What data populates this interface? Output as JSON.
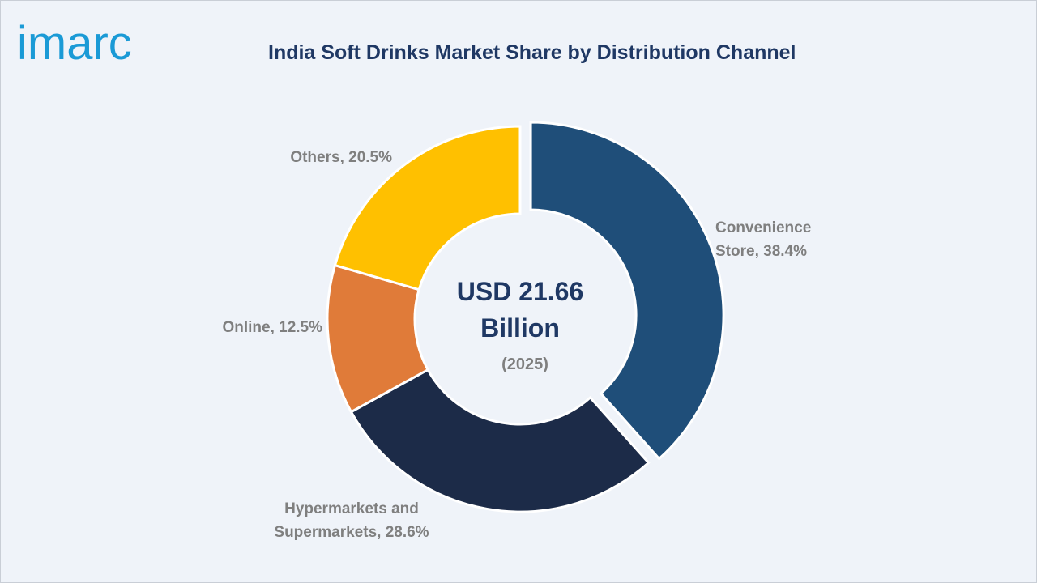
{
  "brand": {
    "logo_text": "imarc",
    "logo_color": "#1a9ad6"
  },
  "chart_data": {
    "type": "pie",
    "title": "India Soft Drinks Market Share by Distribution Channel",
    "center_text": {
      "line1": "USD 21.66",
      "line2": "Billion",
      "line3": "(2025)"
    },
    "slices": [
      {
        "label_lines": [
          "Convenience",
          "Store, 38.4%"
        ],
        "category": "Convenience Store",
        "value": 38.4,
        "color": "#1f4e79",
        "exploded": true
      },
      {
        "label_lines": [
          "Hypermarkets and",
          "Supermarkets, 28.6%"
        ],
        "category": "Hypermarkets and Supermarkets",
        "value": 28.6,
        "color": "#1c2b48",
        "exploded": false
      },
      {
        "label_lines": [
          "Online, 12.5%"
        ],
        "category": "Online",
        "value": 12.5,
        "color": "#e07b39",
        "exploded": false
      },
      {
        "label_lines": [
          "Others, 20.5%"
        ],
        "category": "Others",
        "value": 20.5,
        "color": "#ffc000",
        "exploded": false
      }
    ]
  }
}
